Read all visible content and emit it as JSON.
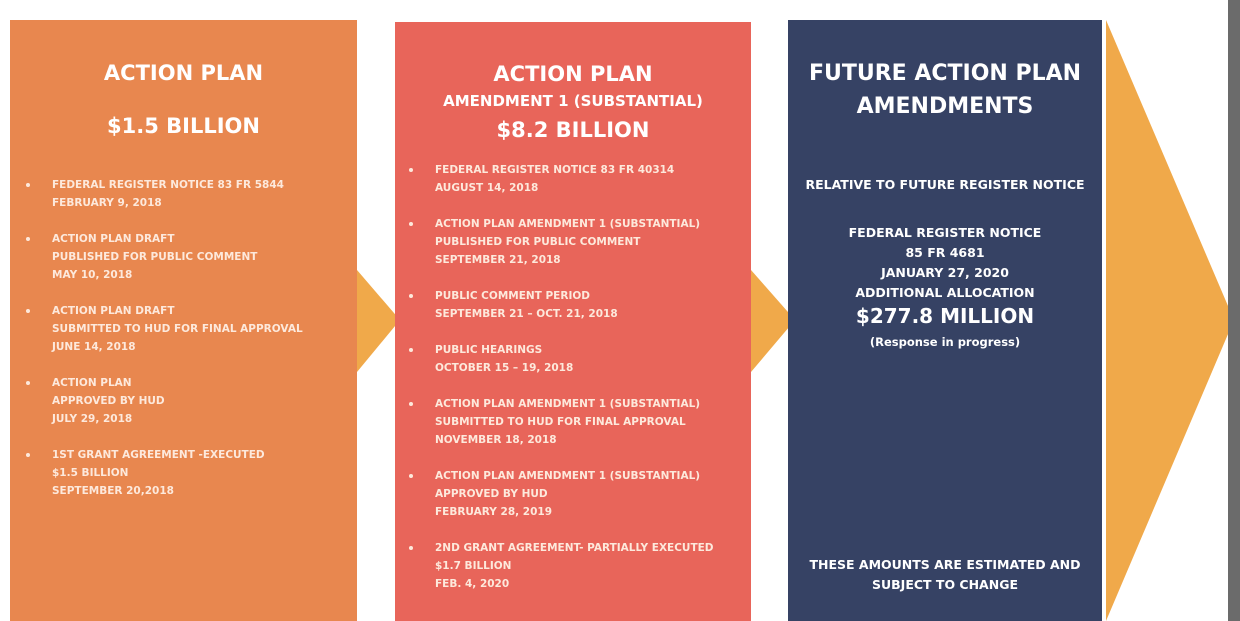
{
  "panels": [
    {
      "title": "ACTION PLAN",
      "amount": "$1.5 BILLION",
      "items": [
        [
          "FEDERAL REGISTER NOTICE 83 FR 5844",
          "FEBRUARY 9, 2018"
        ],
        [
          "ACTION PLAN DRAFT",
          "PUBLISHED FOR PUBLIC COMMENT",
          "MAY 10, 2018"
        ],
        [
          "ACTION PLAN DRAFT",
          "SUBMITTED TO HUD FOR FINAL APPROVAL",
          "JUNE 14, 2018"
        ],
        [
          "ACTION PLAN",
          "APPROVED BY HUD",
          "JULY 29, 2018"
        ],
        [
          "1ST GRANT AGREEMENT -EXECUTED",
          "$1.5 BILLION",
          "SEPTEMBER 20,2018"
        ]
      ]
    },
    {
      "title": "ACTION PLAN",
      "subtitle": "AMENDMENT 1 (SUBSTANTIAL)",
      "amount": "$8.2 BILLION",
      "items": [
        [
          "FEDERAL REGISTER NOTICE 83 FR 40314",
          "AUGUST 14, 2018"
        ],
        [
          "ACTION PLAN AMENDMENT 1 (SUBSTANTIAL)",
          "PUBLISHED FOR PUBLIC COMMENT",
          "SEPTEMBER 21, 2018"
        ],
        [
          "PUBLIC COMMENT PERIOD",
          "SEPTEMBER 21 – OCT. 21, 2018"
        ],
        [
          "PUBLIC HEARINGS",
          "OCTOBER 15 – 19, 2018"
        ],
        [
          "ACTION PLAN AMENDMENT 1 (SUBSTANTIAL)",
          "SUBMITTED TO HUD FOR FINAL APPROVAL",
          "NOVEMBER 18, 2018"
        ],
        [
          "ACTION PLAN AMENDMENT 1 (SUBSTANTIAL)",
          "APPROVED BY HUD",
          "FEBRUARY 28, 2019"
        ],
        [
          "2ND GRANT AGREEMENT- PARTIALLY EXECUTED",
          "$1.7 BILLION",
          "FEB. 4, 2020"
        ]
      ]
    },
    {
      "title": [
        "FUTURE ACTION PLAN",
        "AMENDMENTS"
      ],
      "note": "RELATIVE TO FUTURE REGISTER NOTICE",
      "notice": [
        "FEDERAL REGISTER NOTICE",
        "85 FR 4681",
        "JANUARY 27, 2020",
        "ADDITIONAL ALLOCATION"
      ],
      "amount": "$277.8 MILLION",
      "status": "(Response in progress)",
      "disclaimer": [
        "THESE AMOUNTS ARE ESTIMATED AND",
        "SUBJECT TO CHANGE"
      ]
    }
  ]
}
